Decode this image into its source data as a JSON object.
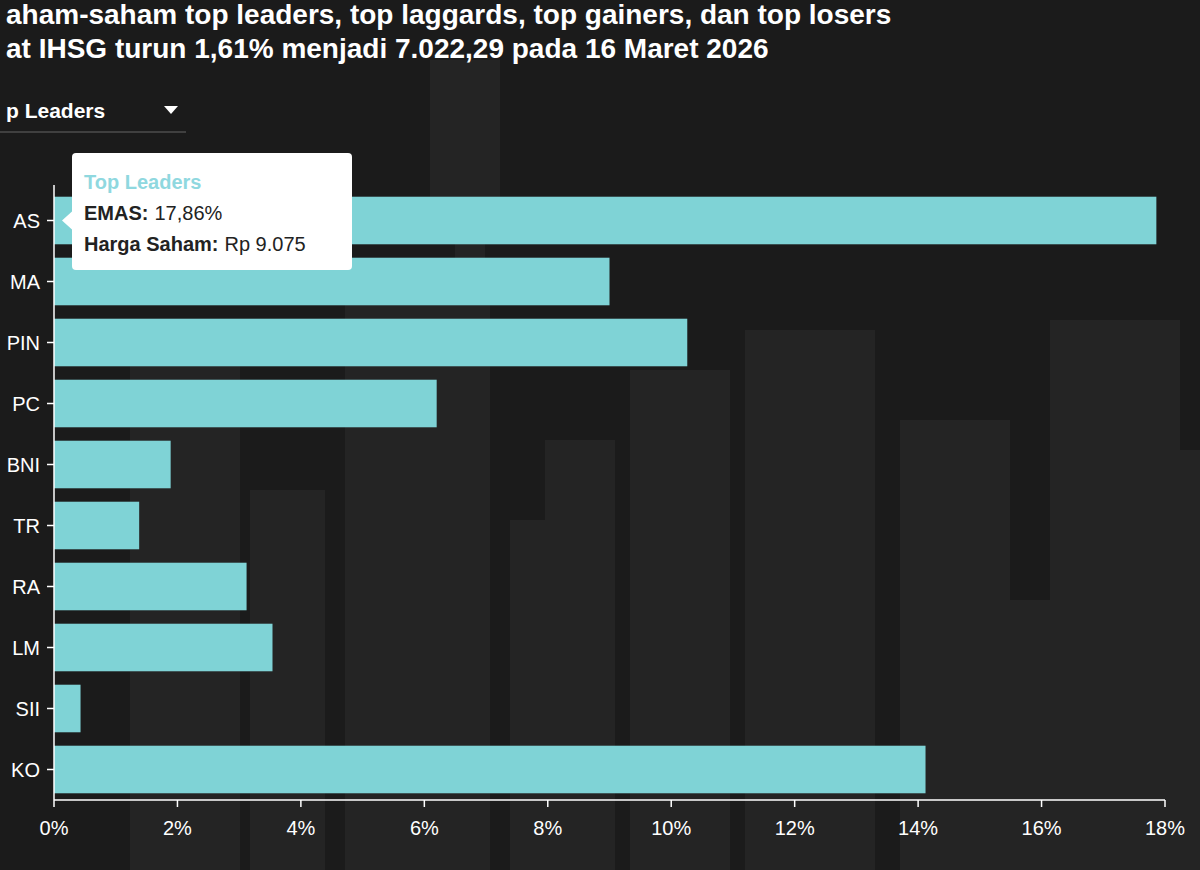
{
  "chart_data": {
    "type": "bar",
    "orientation": "horizontal",
    "title": "aham-saham top leaders, top laggards, top gainers, dan top losers",
    "subtitle": "at IHSG turun 1,61% menjadi 7.022,29 pada 16 Maret 2026",
    "annotations": [
      {
        "text": "p Leaders"
      },
      {
        "heading": "Top Leaders",
        "lines": [
          {
            "label": "EMAS:",
            "text": "17,86%"
          },
          {
            "label": "Harga Saham:",
            "text": "Rp 9.075"
          }
        ]
      }
    ],
    "categories": [
      "AS",
      "MA",
      "PIN",
      "PC",
      "BNI",
      "TR",
      "RA",
      "LM",
      "SII",
      "KO"
    ],
    "values": [
      17.86,
      9.0,
      10.26,
      6.2,
      1.89,
      1.38,
      3.12,
      3.54,
      0.43,
      14.12
    ],
    "color": "#7fd3d6",
    "xlim": [
      0,
      18
    ],
    "xticks": [
      {
        "value": 0,
        "label": "0%"
      },
      {
        "value": 2,
        "label": "2%"
      },
      {
        "value": 4,
        "label": "4%"
      },
      {
        "value": 6,
        "label": "6%"
      },
      {
        "value": 8,
        "label": "8%"
      },
      {
        "value": 10,
        "label": "10%"
      },
      {
        "value": 12,
        "label": "12%"
      },
      {
        "value": 14,
        "label": "14%"
      },
      {
        "value": 16,
        "label": "16%"
      },
      {
        "value": 18,
        "label": "18%"
      }
    ],
    "grid": false
  }
}
